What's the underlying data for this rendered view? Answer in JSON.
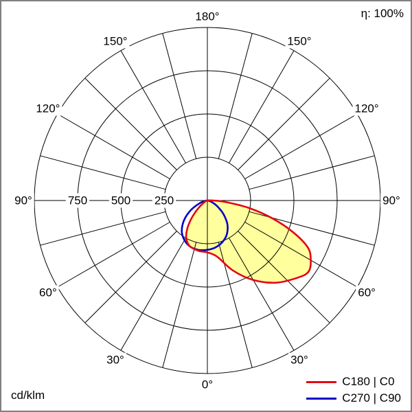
{
  "chart_data": {
    "type": "polar",
    "subtype": "luminous-intensity-distribution",
    "unit": "cd/klm",
    "efficiency": "η: 100%",
    "grid": {
      "circle_values": [
        250,
        500,
        750,
        1000
      ],
      "radial_tick_labels": [
        {
          "value": 250,
          "label": "250"
        },
        {
          "value": 500,
          "label": "500"
        },
        {
          "value": 750,
          "label": "750"
        }
      ],
      "angle_step_deg": 15,
      "angle_labels": [
        {
          "deg": 0,
          "label": "0°"
        },
        {
          "deg": 30,
          "label": "30°"
        },
        {
          "deg": 60,
          "label": "60°"
        },
        {
          "deg": 90,
          "label": "90°"
        },
        {
          "deg": 120,
          "label": "120°"
        },
        {
          "deg": 150,
          "label": "150°"
        },
        {
          "deg": 180,
          "label": "180°"
        }
      ]
    },
    "series": [
      {
        "name": "C180 | C0",
        "color": "#e30613",
        "fill": "#ffff9e",
        "points": {
          "left_c180_gamma_value": [
            [
              0,
              300
            ],
            [
              10,
              295
            ],
            [
              20,
              285
            ],
            [
              25,
              270
            ],
            [
              30,
              245
            ],
            [
              35,
              205
            ],
            [
              40,
              155
            ],
            [
              45,
              105
            ],
            [
              50,
              65
            ],
            [
              55,
              38
            ],
            [
              60,
              20
            ],
            [
              70,
              6
            ],
            [
              80,
              2
            ],
            [
              90,
              0
            ]
          ],
          "right_c0_gamma_value": [
            [
              0,
              300
            ],
            [
              10,
              330
            ],
            [
              20,
              430
            ],
            [
              30,
              530
            ],
            [
              40,
              620
            ],
            [
              50,
              690
            ],
            [
              55,
              715
            ],
            [
              60,
              690
            ],
            [
              65,
              640
            ],
            [
              70,
              520
            ],
            [
              75,
              380
            ],
            [
              80,
              240
            ],
            [
              85,
              110
            ],
            [
              90,
              35
            ],
            [
              95,
              10
            ],
            [
              100,
              0
            ]
          ]
        }
      },
      {
        "name": "C270 | C90",
        "color": "#0000c8",
        "fill": "none",
        "points": {
          "left_c270_gamma_value": [
            [
              0,
              285
            ],
            [
              10,
              290
            ],
            [
              20,
              285
            ],
            [
              30,
              265
            ],
            [
              40,
              230
            ],
            [
              50,
              175
            ],
            [
              60,
              110
            ],
            [
              70,
              50
            ],
            [
              80,
              15
            ],
            [
              90,
              3
            ]
          ],
          "right_c90_gamma_value": [
            [
              0,
              285
            ],
            [
              10,
              275
            ],
            [
              20,
              255
            ],
            [
              30,
              225
            ],
            [
              40,
              180
            ],
            [
              50,
              120
            ],
            [
              60,
              65
            ],
            [
              70,
              28
            ],
            [
              80,
              8
            ],
            [
              90,
              0
            ]
          ]
        }
      }
    ]
  }
}
